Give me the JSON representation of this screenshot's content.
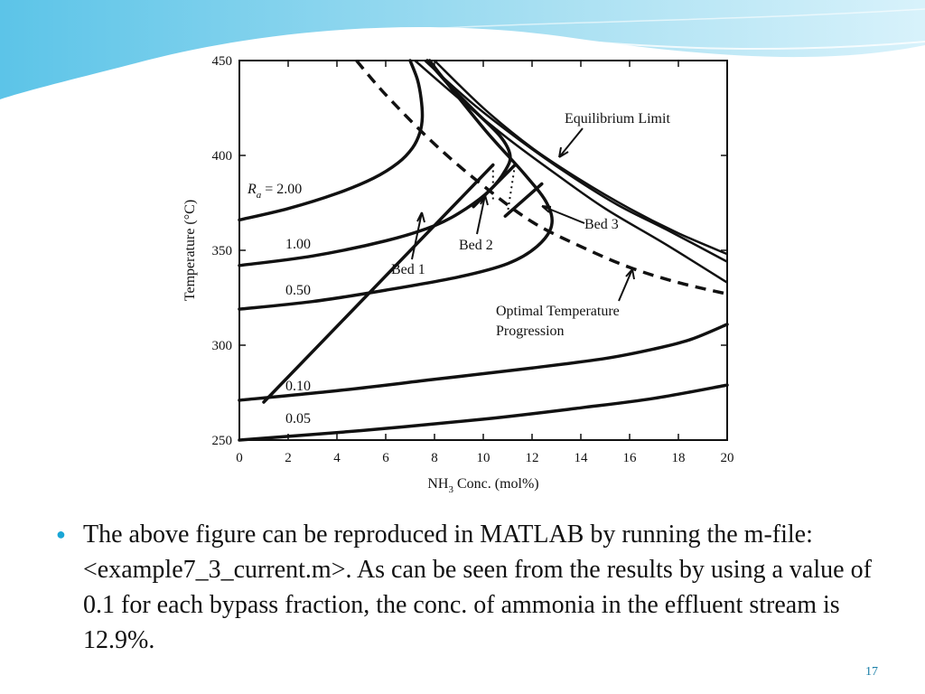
{
  "slide": {
    "bullet_text": "The above figure can be reproduced in MATLAB by running the m-file: <example7_3_current.m>. As can be seen from the results by using a value of 0.1 for each bypass fraction, the conc. of ammonia in the effluent stream is 12.9%.",
    "page_number": "17",
    "accent_color": "#1aa6d6"
  },
  "chart_data": {
    "type": "line",
    "title": "",
    "xlabel_main": "NH",
    "xlabel_sub": "3",
    "xlabel_rest": " Conc. (mol%)",
    "ylabel": "Temperature (°C)",
    "xlim": [
      0,
      20
    ],
    "ylim": [
      250,
      450
    ],
    "x_ticks": [
      "0",
      "2",
      "4",
      "6",
      "8",
      "10",
      "12",
      "14",
      "16",
      "18",
      "20"
    ],
    "y_ticks": [
      "250",
      "300",
      "350",
      "400",
      "450"
    ],
    "rate_curve_labels": {
      "ra_symbol": "R",
      "ra_sub": "a",
      "ra_value": " = 2.00",
      "values": [
        "1.00",
        "0.50",
        "0.10",
        "0.05"
      ]
    },
    "annotations": {
      "equilibrium": "Equilibrium Limit",
      "bed1": "Bed 1",
      "bed2": "Bed 2",
      "bed3": "Bed 3",
      "optimal_line1": "Optimal Temperature",
      "optimal_line2": "Progression"
    },
    "series": [
      {
        "name": "2.00",
        "x": [
          0,
          2,
          4,
          5.5,
          6.5,
          7.1,
          7.4,
          7.5,
          7.45,
          7.3,
          7.0
        ],
        "y": [
          366,
          372,
          380,
          388,
          396,
          404,
          412,
          420,
          430,
          440,
          450
        ]
      },
      {
        "name": "1.00",
        "x": [
          0,
          3,
          6,
          8,
          9.3,
          10.3,
          10.9,
          11.1,
          10.7,
          9.6,
          8.6,
          7.7
        ],
        "y": [
          342,
          347,
          355,
          363,
          372,
          382,
          392,
          400,
          410,
          424,
          437,
          450
        ]
      },
      {
        "name": "0.50",
        "x": [
          0,
          3,
          6,
          9,
          11,
          12.2,
          12.8,
          12.6,
          11.7,
          10.1,
          8.4,
          7.8
        ],
        "y": [
          319,
          323,
          329,
          336,
          343,
          352,
          363,
          375,
          390,
          413,
          440,
          450
        ]
      },
      {
        "name": "0.10",
        "x": [
          0,
          4,
          8,
          12,
          15,
          17,
          18.5,
          20
        ],
        "y": [
          271,
          276,
          282,
          288,
          293,
          298,
          303,
          311
        ]
      },
      {
        "name": "0.05",
        "x": [
          0,
          5,
          10,
          14,
          17,
          20
        ],
        "y": [
          250,
          255,
          261,
          267,
          272,
          279
        ]
      },
      {
        "name": "Equilibrium Limit",
        "style": "equilibrium",
        "x": [
          8,
          10,
          12,
          14,
          16,
          18,
          20
        ],
        "y": [
          450,
          425,
          404,
          387,
          372,
          359,
          348
        ]
      },
      {
        "name": "Equilibrium 2",
        "style": "equilibrium",
        "x": [
          7.6,
          9.5,
          11.5,
          13.5,
          15.5,
          17.5,
          20
        ],
        "y": [
          450,
          428,
          408,
          390,
          374,
          361,
          344
        ]
      },
      {
        "name": "Equilibrium 3",
        "style": "equilibrium",
        "x": [
          7.2,
          9,
          11,
          13,
          15,
          17.5,
          20
        ],
        "y": [
          450,
          430,
          409,
          390,
          372,
          353,
          333
        ]
      },
      {
        "name": "Optimal Temperature Progression",
        "style": "optimal",
        "x": [
          4.8,
          6,
          8,
          10,
          12,
          14,
          16,
          18,
          20
        ],
        "y": [
          450,
          432,
          406,
          384,
          365,
          352,
          341,
          333,
          327
        ]
      },
      {
        "name": "Bed 1",
        "style": "bed",
        "x": [
          1,
          10.4
        ],
        "y": [
          270,
          395
        ]
      },
      {
        "name": "Bed 1 dotted",
        "style": "dotted",
        "x": [
          10.4,
          10.4
        ],
        "y": [
          395,
          375
        ]
      },
      {
        "name": "Bed 2",
        "style": "bed",
        "x": [
          9.6,
          11.3
        ],
        "y": [
          373,
          395
        ]
      },
      {
        "name": "Bed 2 dotted",
        "style": "dotted",
        "x": [
          11.3,
          11.0
        ],
        "y": [
          395,
          370
        ]
      },
      {
        "name": "Bed 3",
        "style": "bed",
        "x": [
          10.9,
          12.4
        ],
        "y": [
          368,
          385
        ]
      }
    ]
  }
}
